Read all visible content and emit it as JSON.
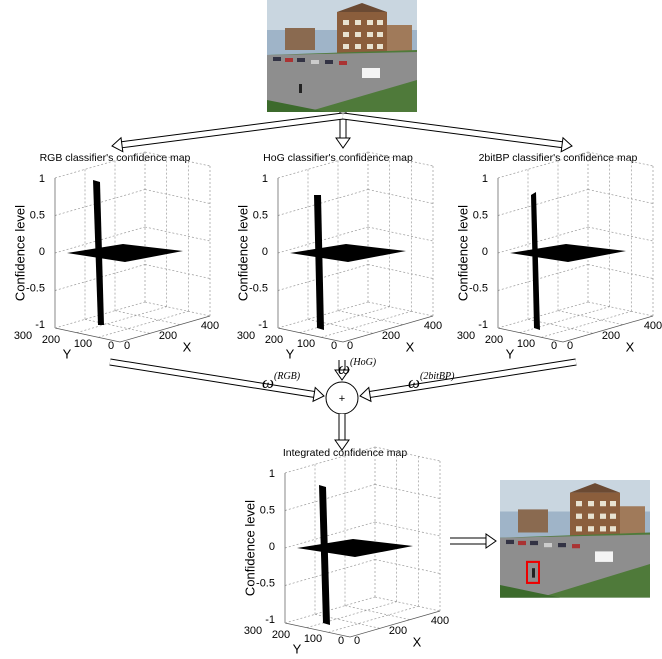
{
  "maps": [
    {
      "title": "RGB classifier's confidence map",
      "z_label": "Confidence level",
      "y_label": "Y",
      "x_label": "X",
      "z_ticks": [
        "1",
        "0.5",
        "0",
        "-0.5",
        "-1"
      ],
      "y_ticks": [
        "300",
        "200",
        "100",
        "0"
      ],
      "x_ticks": [
        "0",
        "200",
        "400"
      ]
    },
    {
      "title": "HoG classifier's confidence map",
      "z_label": "Confidence level",
      "y_label": "Y",
      "x_label": "X",
      "z_ticks": [
        "1",
        "0.5",
        "0",
        "-0.5",
        "-1"
      ],
      "y_ticks": [
        "300",
        "200",
        "100",
        "0"
      ],
      "x_ticks": [
        "0",
        "200",
        "400"
      ]
    },
    {
      "title": "2bitBP classifier's confidence map",
      "z_label": "Confidence level",
      "y_label": "Y",
      "x_label": "X",
      "z_ticks": [
        "1",
        "0.5",
        "0",
        "-0.5",
        "-1"
      ],
      "y_ticks": [
        "300",
        "200",
        "100",
        "0"
      ],
      "x_ticks": [
        "0",
        "200",
        "400"
      ]
    },
    {
      "title": "Integrated confidence map",
      "z_label": "Confidence level",
      "y_label": "Y",
      "x_label": "X",
      "z_ticks": [
        "1",
        "0.5",
        "0",
        "-0.5",
        "-1"
      ],
      "y_ticks": [
        "300",
        "200",
        "100",
        "0"
      ],
      "x_ticks": [
        "0",
        "200",
        "400"
      ]
    }
  ],
  "weights": [
    {
      "symbol": "ω",
      "superscript": "(RGB)"
    },
    {
      "symbol": "ω",
      "superscript": "(HoG)"
    },
    {
      "symbol": "ω",
      "superscript": "(2bitBP)"
    }
  ],
  "combiner": "+"
}
